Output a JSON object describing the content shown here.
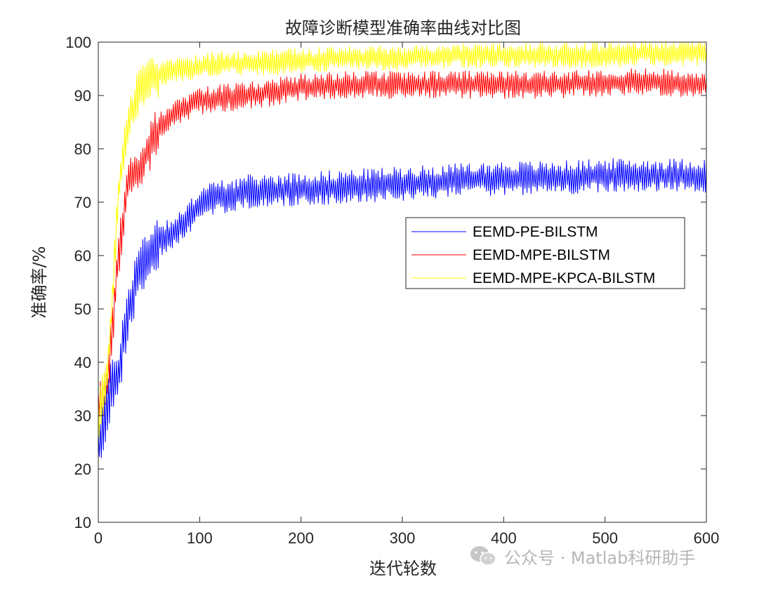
{
  "chart_data": {
    "type": "line",
    "title": "故障诊断模型准确率曲线对比图",
    "xlabel": "迭代轮数",
    "ylabel": "准确率/%",
    "xlim": [
      0,
      600
    ],
    "ylim": [
      10,
      100
    ],
    "xticks": [
      0,
      100,
      200,
      300,
      400,
      500,
      600
    ],
    "yticks": [
      10,
      20,
      30,
      40,
      50,
      60,
      70,
      80,
      90,
      100
    ],
    "grid": false,
    "legend_position": "center-right",
    "series": [
      {
        "name": "EEMD-PE-BILSTM",
        "color": "#0000ff",
        "x": [
          0,
          10,
          20,
          30,
          40,
          50,
          60,
          70,
          80,
          90,
          100,
          120,
          150,
          200,
          250,
          300,
          350,
          400,
          450,
          500,
          550,
          600
        ],
        "values": [
          24,
          33,
          38,
          50,
          57,
          60,
          63,
          64,
          65,
          67,
          70,
          71,
          72,
          72.5,
          73,
          73.5,
          74,
          74.5,
          74.5,
          75,
          75,
          75
        ],
        "fluct": 3.2
      },
      {
        "name": "EEMD-MPE-BILSTM",
        "color": "#ff0000",
        "x": [
          0,
          10,
          20,
          30,
          40,
          50,
          60,
          70,
          80,
          90,
          100,
          120,
          150,
          200,
          250,
          300,
          350,
          400,
          450,
          500,
          550,
          600
        ],
        "values": [
          31,
          38,
          60,
          75,
          76,
          80,
          84,
          86,
          87,
          88,
          89,
          89.5,
          90,
          91.5,
          92,
          92,
          92,
          92,
          92,
          92.5,
          92.5,
          92
        ],
        "fluct": 2.6
      },
      {
        "name": "EEMD-MPE-KPCA-BILSTM",
        "color": "#ffff00",
        "x": [
          0,
          10,
          20,
          30,
          40,
          50,
          60,
          70,
          80,
          90,
          100,
          120,
          150,
          200,
          250,
          300,
          350,
          400,
          450,
          500,
          550,
          600
        ],
        "values": [
          29,
          40,
          72,
          85,
          91,
          93,
          94,
          94.5,
          95,
          95,
          95.5,
          96,
          96,
          96.5,
          97,
          97,
          97.5,
          97.5,
          97.5,
          97.5,
          98,
          98
        ],
        "fluct": 2.4
      }
    ]
  },
  "watermark": {
    "text": "公众号 · Matlab科研助手",
    "icon": "wechat-icon"
  }
}
